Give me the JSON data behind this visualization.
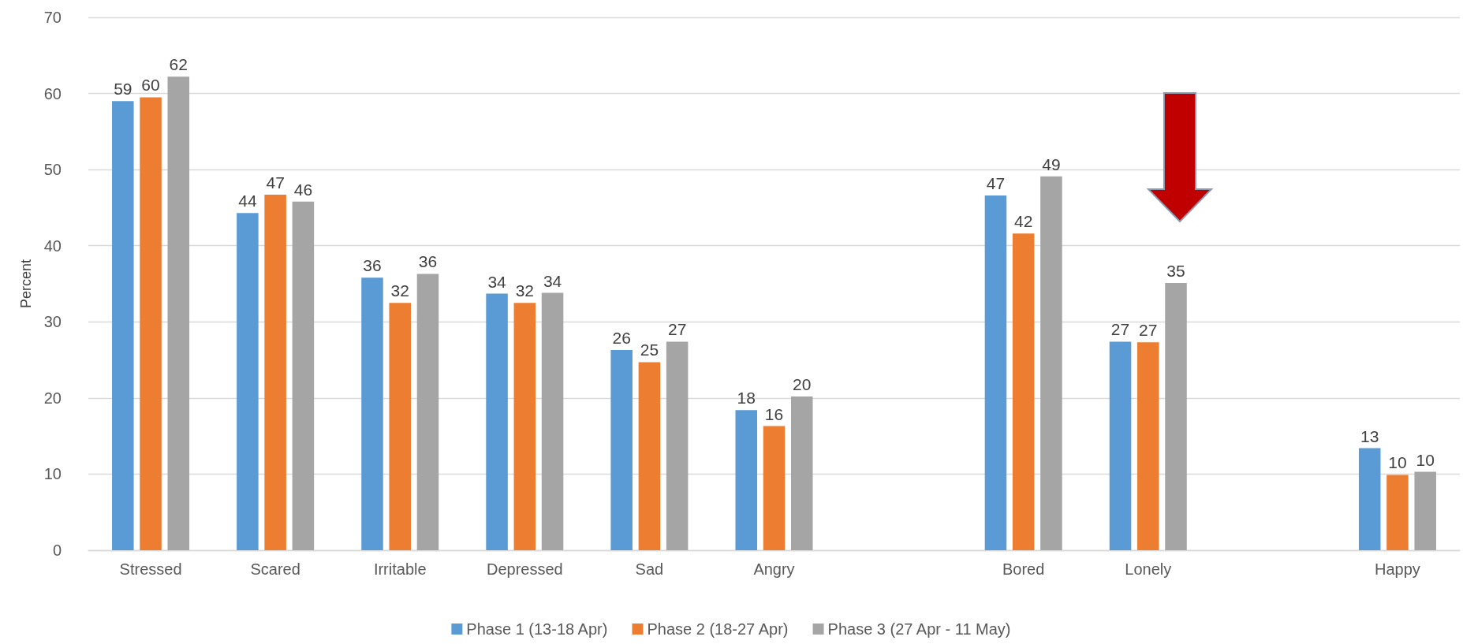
{
  "chart_data": {
    "type": "bar",
    "ylabel": "Percent",
    "categories": [
      "Stressed",
      "Scared",
      "Irritable",
      "Depressed",
      "Sad",
      "Angry",
      null,
      "Bored",
      "Lonely",
      null,
      "Happy"
    ],
    "series": [
      {
        "name": "Phase 1 (13-18 Apr)",
        "color": "#5b9bd5",
        "values": [
          59,
          44.3,
          35.8,
          33.7,
          26.3,
          18.4,
          null,
          46.6,
          27.4,
          null,
          13.4
        ],
        "value_labels": [
          "59",
          "44",
          "36",
          "34",
          "26",
          "18",
          null,
          "47",
          "27",
          null,
          "13"
        ]
      },
      {
        "name": "Phase 2 (18-27 Apr)",
        "color": "#ed7d31",
        "values": [
          59.5,
          46.7,
          32.5,
          32.5,
          24.7,
          16.3,
          null,
          41.6,
          27.3,
          null,
          9.9
        ],
        "value_labels": [
          "60",
          "47",
          "32",
          "32",
          "25",
          "16",
          null,
          "42",
          "27",
          null,
          "10"
        ]
      },
      {
        "name": "Phase 3 (27 Apr - 11 May)",
        "color": "#a5a5a5",
        "values": [
          62.2,
          45.8,
          36.3,
          33.8,
          27.4,
          20.2,
          null,
          49.1,
          35.1,
          null,
          10.3
        ],
        "value_labels": [
          "62",
          "46",
          "36",
          "34",
          "27",
          "20",
          null,
          "49",
          "35",
          null,
          "10"
        ]
      }
    ],
    "ylim": [
      0,
      70
    ],
    "yticks": [
      0,
      10,
      20,
      30,
      40,
      50,
      60,
      70
    ],
    "grid": "y",
    "legend": "bottom"
  }
}
